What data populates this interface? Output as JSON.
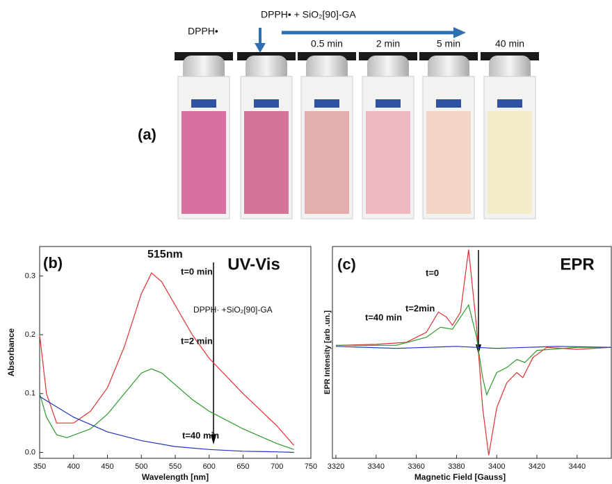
{
  "panel_a": {
    "label": "(a)",
    "reference": "DPPH•",
    "mixture": "DPPH• + SiO₂[90]-GA",
    "times": [
      "0.5 min",
      "2 min",
      "5 min",
      "40 min"
    ]
  },
  "chart_data": [
    {
      "type": "line",
      "panel_label": "(b)",
      "title": "UV-Vis",
      "xlabel": "Wavelength [nm]",
      "ylabel": "Absorbance",
      "annotations": [
        "515nm",
        "DPPH· +SiO₂[90]-GA"
      ],
      "xlim": [
        350,
        750
      ],
      "ylim": [
        -0.01,
        0.35
      ],
      "xticks": [
        350,
        400,
        450,
        500,
        550,
        600,
        650,
        700,
        750
      ],
      "yticks": [
        {
          "value": 0,
          "label": "0.0"
        },
        0.1,
        0.2,
        0.3
      ],
      "series": [
        {
          "name": "t=0 min",
          "color": "#e03030",
          "x": [
            350,
            360,
            375,
            400,
            425,
            450,
            475,
            500,
            515,
            530,
            550,
            575,
            600,
            650,
            700,
            725
          ],
          "values": [
            0.2,
            0.1,
            0.05,
            0.05,
            0.07,
            0.11,
            0.18,
            0.27,
            0.305,
            0.29,
            0.25,
            0.2,
            0.16,
            0.1,
            0.045,
            0.012
          ]
        },
        {
          "name": "t=2 min",
          "color": "#2a9a2a",
          "x": [
            350,
            360,
            375,
            390,
            425,
            450,
            475,
            500,
            515,
            530,
            550,
            575,
            600,
            650,
            700,
            725
          ],
          "values": [
            0.1,
            0.06,
            0.03,
            0.025,
            0.04,
            0.065,
            0.1,
            0.135,
            0.142,
            0.135,
            0.115,
            0.09,
            0.07,
            0.04,
            0.015,
            0.005
          ]
        },
        {
          "name": "t=40 min",
          "color": "#2030c0",
          "x": [
            350,
            400,
            450,
            500,
            550,
            600,
            650,
            700,
            725
          ],
          "values": [
            0.095,
            0.06,
            0.035,
            0.02,
            0.01,
            0.005,
            0.002,
            0.001,
            0.0
          ]
        }
      ]
    },
    {
      "type": "line",
      "panel_label": "(c)",
      "title": "EPR",
      "xlabel": "Magnetic Field [Gauss]",
      "ylabel": "EPR Intensity [arb .un.]",
      "xlim": [
        3320,
        3457
      ],
      "ylim": [
        -1.1,
        1
      ],
      "xticks": [
        3320,
        3340,
        3360,
        3380,
        3400,
        3420,
        3440
      ],
      "series": [
        {
          "name": "t=0",
          "color": "#e03030",
          "x": [
            3320,
            3340,
            3355,
            3365,
            3371,
            3375,
            3378,
            3382,
            3386,
            3390,
            3393,
            3396,
            3400,
            3405,
            3410,
            3413,
            3418,
            3425,
            3440,
            3457
          ],
          "values": [
            0.02,
            0.03,
            0.05,
            0.15,
            0.35,
            0.3,
            0.22,
            0.35,
            0.97,
            0.2,
            -0.6,
            -1.07,
            -0.6,
            -0.35,
            -0.25,
            -0.3,
            -0.1,
            0,
            -0.02,
            0
          ]
        },
        {
          "name": "t=2min",
          "color": "#2a9a2a",
          "x": [
            3320,
            3350,
            3365,
            3372,
            3378,
            3386,
            3390,
            3393,
            3395,
            3400,
            3405,
            3410,
            3414,
            3420,
            3440,
            3457
          ],
          "values": [
            0.02,
            0.02,
            0.1,
            0.2,
            0.18,
            0.42,
            0.1,
            -0.3,
            -0.47,
            -0.25,
            -0.2,
            -0.12,
            -0.15,
            -0.03,
            0,
            0
          ]
        },
        {
          "name": "t=40 min",
          "color": "#2030c0",
          "x": [
            3320,
            3350,
            3380,
            3400,
            3430,
            3457
          ],
          "values": [
            0.01,
            -0.01,
            0.01,
            -0.01,
            0.01,
            0
          ]
        }
      ]
    }
  ]
}
